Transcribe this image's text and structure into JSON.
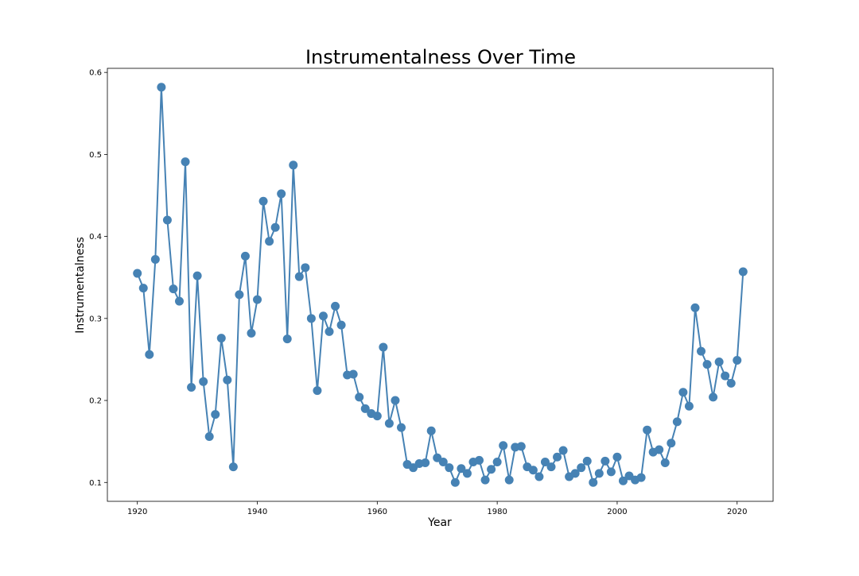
{
  "chart_data": {
    "type": "line",
    "title": "Instrumentalness Over Time",
    "xlabel": "Year",
    "ylabel": "Instrumentalness",
    "xlim": [
      1915,
      2026
    ],
    "ylim": [
      0.077,
      0.605
    ],
    "xticks": [
      1920,
      1940,
      1960,
      1980,
      2000,
      2020
    ],
    "yticks": [
      0.1,
      0.2,
      0.3,
      0.4,
      0.5,
      0.6
    ],
    "grid": false,
    "legend": "none",
    "colors": {
      "line": "#4682b4",
      "marker": "#4682b4"
    },
    "series": [
      {
        "x": [
          1920,
          1921,
          1922,
          1923,
          1924,
          1925,
          1926,
          1927,
          1928,
          1929,
          1930,
          1931,
          1932,
          1933,
          1934,
          1935,
          1936,
          1937,
          1938,
          1939,
          1940,
          1941,
          1942,
          1943,
          1944,
          1945,
          1946,
          1947,
          1948,
          1949,
          1950,
          1951,
          1952,
          1953,
          1954,
          1955,
          1956,
          1957,
          1958,
          1959,
          1960,
          1961,
          1962,
          1963,
          1964,
          1965,
          1966,
          1967,
          1968,
          1969,
          1970,
          1971,
          1972,
          1973,
          1974,
          1975,
          1976,
          1977,
          1978,
          1979,
          1980,
          1981,
          1982,
          1983,
          1984,
          1985,
          1986,
          1987,
          1988,
          1989,
          1990,
          1991,
          1992,
          1993,
          1994,
          1995,
          1996,
          1997,
          1998,
          1999,
          2000,
          2001,
          2002,
          2003,
          2004,
          2005,
          2006,
          2007,
          2008,
          2009,
          2010,
          2011,
          2012,
          2013,
          2014,
          2015,
          2016,
          2017,
          2018,
          2019,
          2020,
          2021
        ],
        "y": [
          0.355,
          0.337,
          0.256,
          0.372,
          0.582,
          0.42,
          0.336,
          0.321,
          0.491,
          0.216,
          0.352,
          0.223,
          0.156,
          0.183,
          0.276,
          0.225,
          0.119,
          0.329,
          0.376,
          0.282,
          0.323,
          0.443,
          0.394,
          0.411,
          0.452,
          0.275,
          0.487,
          0.351,
          0.362,
          0.3,
          0.212,
          0.303,
          0.284,
          0.315,
          0.292,
          0.231,
          0.232,
          0.204,
          0.19,
          0.184,
          0.181,
          0.265,
          0.172,
          0.2,
          0.167,
          0.122,
          0.118,
          0.123,
          0.124,
          0.163,
          0.13,
          0.125,
          0.118,
          0.1,
          0.117,
          0.111,
          0.125,
          0.127,
          0.103,
          0.116,
          0.125,
          0.145,
          0.103,
          0.143,
          0.144,
          0.119,
          0.115,
          0.107,
          0.125,
          0.119,
          0.131,
          0.139,
          0.107,
          0.111,
          0.118,
          0.126,
          0.1,
          0.111,
          0.126,
          0.113,
          0.131,
          0.102,
          0.108,
          0.103,
          0.106,
          0.164,
          0.137,
          0.14,
          0.124,
          0.148,
          0.174,
          0.21,
          0.193,
          0.313,
          0.26,
          0.244,
          0.204,
          0.247,
          0.23,
          0.221,
          0.249,
          0.357
        ]
      }
    ]
  }
}
